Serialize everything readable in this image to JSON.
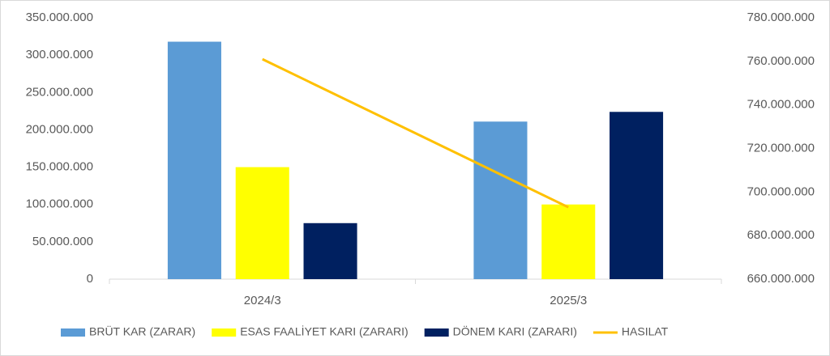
{
  "chart_data": {
    "type": "bar_line",
    "categories": [
      "2024/3",
      "2025/3"
    ],
    "series": [
      {
        "name": "BRÜT KAR (ZARAR)",
        "color": "#5b9bd5",
        "type": "bar",
        "values": [
          318000000,
          211000000
        ]
      },
      {
        "name": "ESAS FAALİYET KARI (ZARARI)",
        "color": "#ffff00",
        "type": "bar",
        "values": [
          150000000,
          100000000
        ]
      },
      {
        "name": "DÖNEM KARI (ZARARI)",
        "color": "#002060",
        "type": "bar",
        "values": [
          75000000,
          224000000
        ]
      },
      {
        "name": "HASILAT",
        "color": "#ffc000",
        "type": "line",
        "axis": "y2",
        "values": [
          761000000,
          693000000
        ]
      }
    ],
    "ylim": [
      0,
      350000000
    ],
    "yticks": [
      0,
      {
        "value": 50000000,
        "label": "50.000.000"
      },
      {
        "value": 100000000,
        "label": "100.000.000"
      },
      {
        "value": 150000000,
        "label": "150.000.000"
      },
      {
        "value": 200000000,
        "label": "200.000.000"
      },
      {
        "value": 250000000,
        "label": "250.000.000"
      },
      {
        "value": 300000000,
        "label": "300.000.000"
      },
      {
        "value": 350000000,
        "label": "350.000.000"
      }
    ],
    "y2lim": [
      660000000,
      780000000
    ],
    "y2ticks": [
      {
        "value": 660000000,
        "label": "660.000.000"
      },
      {
        "value": 680000000,
        "label": "680.000.000"
      },
      {
        "value": 700000000,
        "label": "700.000.000"
      },
      {
        "value": 720000000,
        "label": "720.000.000"
      },
      {
        "value": 740000000,
        "label": "740.000.000"
      },
      {
        "value": 760000000,
        "label": "760.000.000"
      },
      {
        "value": 780000000,
        "label": "780.000.000"
      }
    ],
    "grid": false,
    "legend": "bottom"
  }
}
